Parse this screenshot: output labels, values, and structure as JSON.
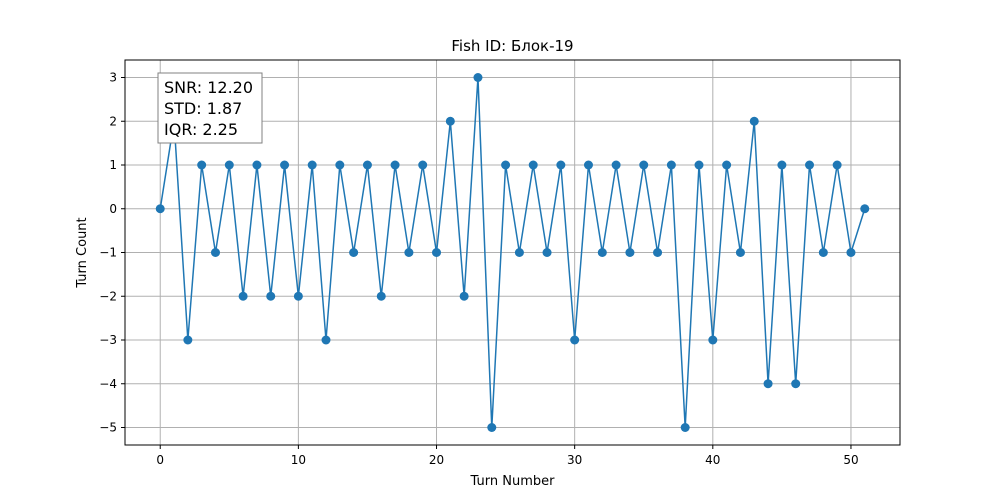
{
  "chart_data": {
    "type": "line",
    "title": "Fish ID: Блок-19",
    "xlabel": "Turn Number",
    "ylabel": "Turn Count",
    "xlim": [
      -2.55,
      53.55
    ],
    "ylim": [
      -5.4,
      3.4
    ],
    "xticks": [
      0,
      10,
      20,
      30,
      40,
      50
    ],
    "yticks": [
      -5,
      -4,
      -3,
      -2,
      -1,
      0,
      1,
      2,
      3
    ],
    "xtick_labels": [
      "0",
      "10",
      "20",
      "30",
      "40",
      "50"
    ],
    "ytick_labels": [
      "−5",
      "−4",
      "−3",
      "−2",
      "−1",
      "0",
      "1",
      "2",
      "3"
    ],
    "grid": true,
    "series": [
      {
        "color": "#1f77b4",
        "marker": "circle",
        "x": [
          0,
          1,
          2,
          3,
          4,
          5,
          6,
          7,
          8,
          9,
          10,
          11,
          12,
          13,
          14,
          15,
          16,
          17,
          18,
          19,
          20,
          21,
          22,
          23,
          24,
          25,
          26,
          27,
          28,
          29,
          30,
          31,
          32,
          33,
          34,
          35,
          36,
          37,
          38,
          39,
          40,
          41,
          42,
          43,
          44,
          45,
          46,
          47,
          48,
          49,
          50,
          51
        ],
        "values": [
          0,
          2,
          -3,
          1,
          -1,
          1,
          -2,
          1,
          -2,
          1,
          -2,
          1,
          -3,
          1,
          -1,
          1,
          -2,
          1,
          -1,
          1,
          -1,
          2,
          -2,
          3,
          -5,
          1,
          -1,
          1,
          -1,
          1,
          -3,
          1,
          -1,
          1,
          -1,
          1,
          -1,
          1,
          -5,
          1,
          -3,
          1,
          -1,
          2,
          -4,
          1,
          -4,
          1,
          -1,
          1,
          -1,
          0
        ]
      }
    ],
    "annotation": {
      "lines": [
        "SNR: 12.20",
        "STD: 1.87",
        "IQR: 2.25"
      ],
      "placement": "top-left"
    }
  }
}
